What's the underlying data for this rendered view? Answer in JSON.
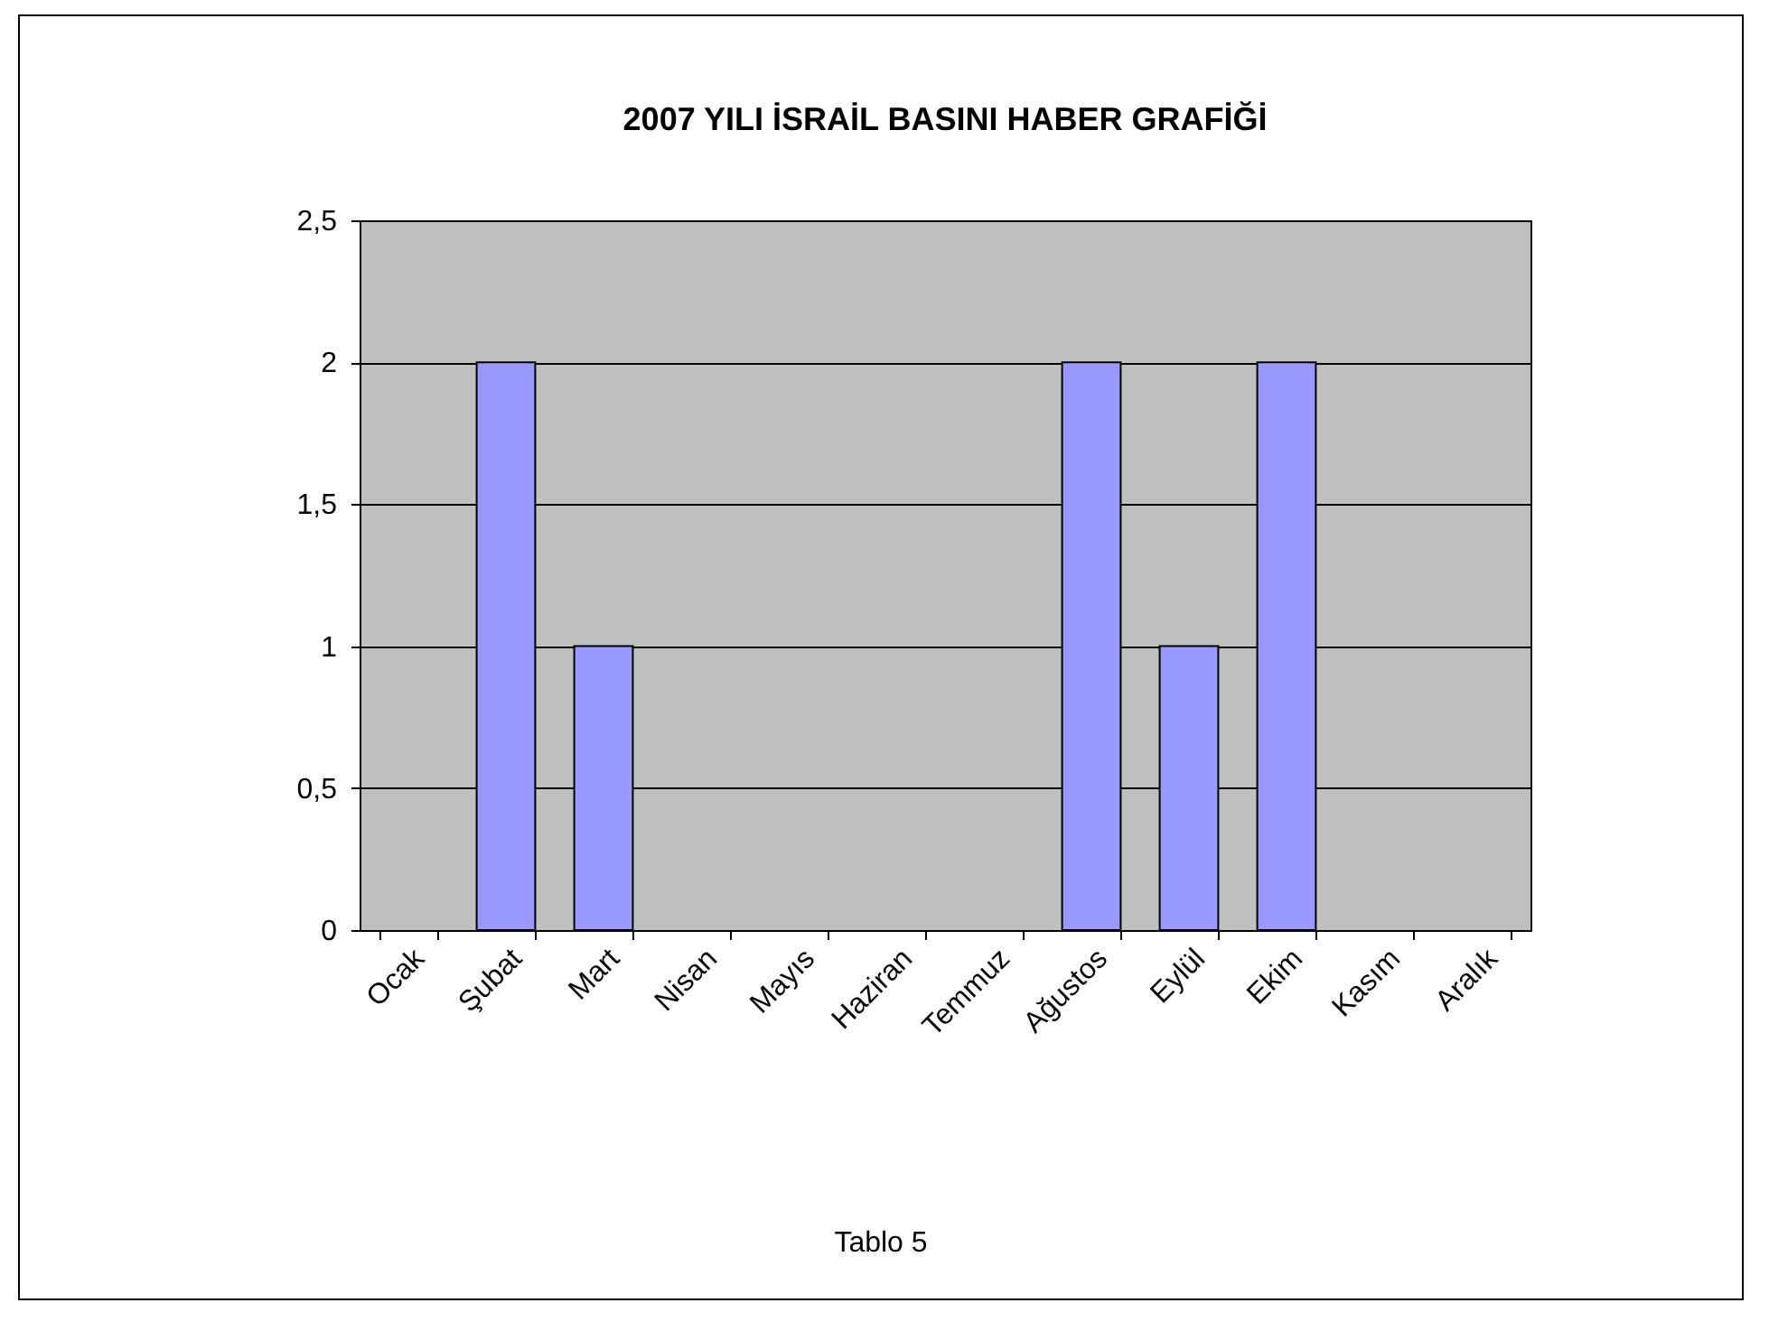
{
  "chart_data": {
    "type": "bar",
    "title": "2007 YILI İSRAİL BASINI HABER GRAFİĞİ",
    "categories": [
      "Ocak",
      "Şubat",
      "Mart",
      "Nisan",
      "Mayıs",
      "Haziran",
      "Temmuz",
      "Ağustos",
      "Eylül",
      "Ekim",
      "Kasım",
      "Aralık"
    ],
    "values": [
      0,
      2,
      1,
      0,
      0,
      0,
      0,
      2,
      1,
      2,
      0,
      0
    ],
    "color": "#9999ff",
    "ylim": [
      0,
      2.5
    ],
    "yticks": [
      0,
      {
        "value": 0.5,
        "label": "0,5"
      },
      1,
      {
        "value": 1.5,
        "label": "1,5"
      },
      2,
      {
        "value": 2.5,
        "label": "2,5"
      }
    ],
    "grid": "y",
    "annotations": [
      "Tablo 5"
    ]
  }
}
